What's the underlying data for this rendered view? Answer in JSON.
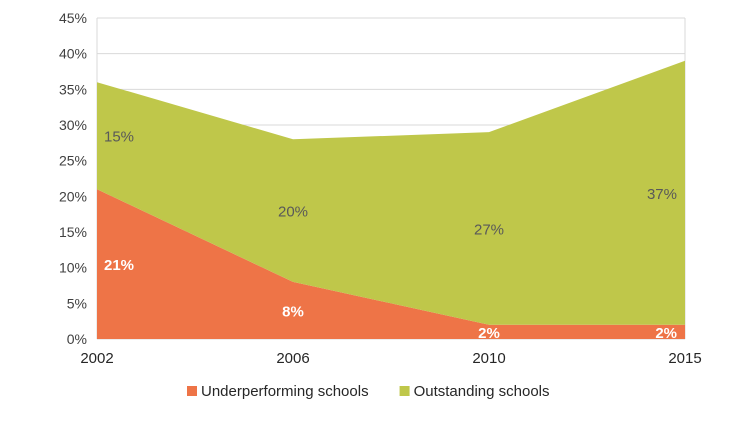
{
  "chart_data": {
    "type": "area",
    "stacked": true,
    "title": "",
    "xlabel": "",
    "ylabel": "",
    "categories": [
      "2002",
      "2006",
      "2010",
      "2015"
    ],
    "series": [
      {
        "name": "Underperforming schools",
        "values": [
          21,
          8,
          2,
          2
        ],
        "labels": [
          "21%",
          "8%",
          "2%",
          "2%"
        ],
        "color": "#EE7447",
        "label_color": "#FFFFFF"
      },
      {
        "name": "Outstanding schools",
        "values": [
          15,
          20,
          27,
          37
        ],
        "labels": [
          "15%",
          "20%",
          "27%",
          "37%"
        ],
        "color": "#BFC74A",
        "label_color": "#595959"
      }
    ],
    "ylim": [
      0,
      45
    ],
    "yticks": [
      0,
      5,
      10,
      15,
      20,
      25,
      30,
      35,
      40,
      45
    ],
    "ytick_labels": [
      "0%",
      "5%",
      "10%",
      "15%",
      "20%",
      "25%",
      "30%",
      "35%",
      "40%",
      "45%"
    ],
    "grid": true,
    "legend_position": "bottom"
  }
}
